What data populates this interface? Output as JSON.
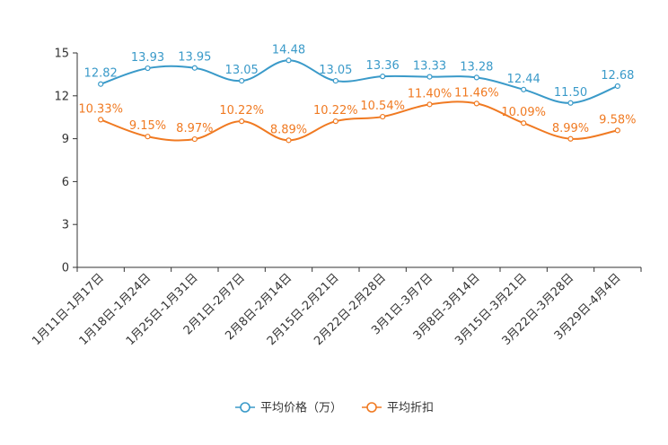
{
  "chart_data": {
    "type": "line",
    "title": "",
    "xlabel": "",
    "ylabel": "",
    "ylim": [
      0,
      15
    ],
    "yticks": [
      "0",
      "3",
      "6",
      "9",
      "12",
      "15"
    ],
    "categories": [
      "1月11日-1月17日",
      "1月18日-1月24日",
      "1月25日-1月31日",
      "2月1日-2月7日",
      "2月8日-2月14日",
      "2月15日-2月21日",
      "2月22日-2月28日",
      "3月1日-3月7日",
      "3月8日-3月14日",
      "3月15日-3月21日",
      "3月22日-3月28日",
      "3月29日-4月4日"
    ],
    "series": [
      {
        "name": "平均价格（万）",
        "color": "#3a9ac9",
        "values": [
          12.82,
          13.93,
          13.95,
          13.05,
          14.48,
          13.05,
          13.36,
          13.33,
          13.28,
          12.44,
          11.5,
          12.68
        ],
        "labels": [
          "12.82",
          "13.93",
          "13.95",
          "13.05",
          "14.48",
          "13.05",
          "13.36",
          "13.33",
          "13.28",
          "12.44",
          "11.50",
          "12.68"
        ]
      },
      {
        "name": "平均折扣",
        "color": "#f07a22",
        "values": [
          10.33,
          9.15,
          8.97,
          10.22,
          8.89,
          10.22,
          10.54,
          11.4,
          11.46,
          10.09,
          8.99,
          9.58
        ],
        "labels": [
          "10.33%",
          "9.15%",
          "8.97%",
          "10.22%",
          "8.89%",
          "10.22%",
          "10.54%",
          "11.40%",
          "11.46%",
          "10.09%",
          "8.99%",
          "9.58%"
        ]
      }
    ],
    "legend": {
      "position": "bottom-center"
    },
    "grid": false
  }
}
